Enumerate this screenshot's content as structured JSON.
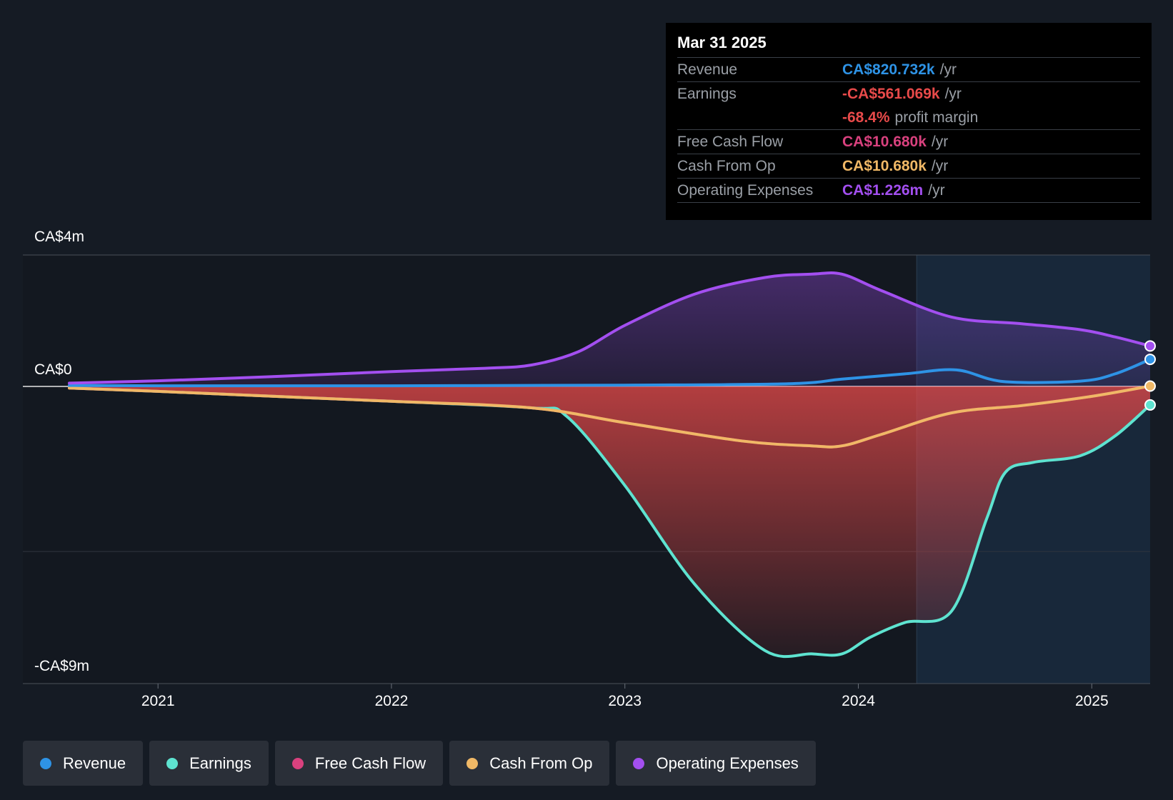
{
  "chart_data": {
    "type": "area",
    "y_labels": [
      "CA$4m",
      "CA$0",
      "-CA$9m"
    ],
    "ylim": [
      -9,
      4
    ],
    "y_unit": "CA$ millions",
    "x_ticks": [
      "2021",
      "2022",
      "2023",
      "2024",
      "2025"
    ],
    "xlim": [
      2020.62,
      2025.25
    ],
    "forecast_start": 2024.25,
    "series": [
      {
        "name": "Operating Expenses",
        "color": "#a34ff0",
        "fill": true,
        "x": [
          2020.62,
          2021.0,
          2021.5,
          2022.0,
          2022.4,
          2022.6,
          2022.8,
          2023.0,
          2023.3,
          2023.6,
          2023.8,
          2023.93,
          2024.1,
          2024.4,
          2024.7,
          2024.95,
          2025.1,
          2025.25
        ],
        "y": [
          0.1,
          0.17,
          0.3,
          0.45,
          0.55,
          0.65,
          1.05,
          1.85,
          2.8,
          3.3,
          3.4,
          3.4,
          2.9,
          2.1,
          1.9,
          1.72,
          1.5,
          1.226
        ]
      },
      {
        "name": "Revenue",
        "color": "#2e93e6",
        "fill": false,
        "x": [
          2020.62,
          2021.0,
          2022.0,
          2023.0,
          2023.7,
          2023.93,
          2024.2,
          2024.42,
          2024.62,
          2024.95,
          2025.1,
          2025.25
        ],
        "y": [
          0.03,
          0.02,
          0.02,
          0.04,
          0.08,
          0.22,
          0.38,
          0.5,
          0.15,
          0.16,
          0.38,
          0.820732
        ]
      },
      {
        "name": "Cash From Op",
        "color": "#f0b866",
        "fill": false,
        "x": [
          2020.62,
          2021.0,
          2021.5,
          2022.0,
          2022.6,
          2023.0,
          2023.5,
          2023.8,
          2023.93,
          2024.1,
          2024.4,
          2024.7,
          2025.0,
          2025.25
        ],
        "y": [
          -0.05,
          -0.15,
          -0.3,
          -0.45,
          -0.65,
          -1.1,
          -1.65,
          -1.8,
          -1.8,
          -1.45,
          -0.8,
          -0.58,
          -0.3,
          0.01068
        ]
      },
      {
        "name": "Free Cash Flow",
        "color": "#d9417e",
        "fill": false,
        "x": [
          2020.62,
          2021.0,
          2021.5,
          2022.0,
          2022.6,
          2023.0,
          2023.5,
          2023.8,
          2023.93,
          2024.1,
          2024.4,
          2024.7,
          2025.0,
          2025.25
        ],
        "y": [
          -0.05,
          -0.15,
          -0.3,
          -0.45,
          -0.65,
          -1.1,
          -1.65,
          -1.8,
          -1.8,
          -1.45,
          -0.8,
          -0.58,
          -0.3,
          0.01068
        ]
      },
      {
        "name": "Earnings",
        "color": "#5ee3d0",
        "fill": true,
        "x": [
          2020.62,
          2021.0,
          2021.5,
          2022.0,
          2022.6,
          2022.75,
          2023.0,
          2023.3,
          2023.6,
          2023.8,
          2023.93,
          2024.05,
          2024.2,
          2024.4,
          2024.55,
          2024.63,
          2024.75,
          2024.95,
          2025.1,
          2025.25
        ],
        "y": [
          -0.05,
          -0.15,
          -0.3,
          -0.45,
          -0.65,
          -0.9,
          -3.0,
          -6.0,
          -8.0,
          -8.1,
          -8.1,
          -7.6,
          -7.15,
          -6.8,
          -4.0,
          -2.6,
          -2.3,
          -2.1,
          -1.5,
          -0.561069
        ]
      }
    ]
  },
  "tooltip": {
    "date": "Mar 31 2025",
    "rows": [
      {
        "label": "Revenue",
        "value": "CA$820.732k",
        "unit": "/yr",
        "color": "#2e93e6"
      },
      {
        "label": "Earnings",
        "value": "-CA$561.069k",
        "unit": "/yr",
        "color": "#e84a4a"
      },
      {
        "label": "",
        "value": "-68.4%",
        "unit": "profit margin",
        "color": "#e84a4a"
      },
      {
        "label": "Free Cash Flow",
        "value": "CA$10.680k",
        "unit": "/yr",
        "color": "#d9417e"
      },
      {
        "label": "Cash From Op",
        "value": "CA$10.680k",
        "unit": "/yr",
        "color": "#f0b866"
      },
      {
        "label": "Operating Expenses",
        "value": "CA$1.226m",
        "unit": "/yr",
        "color": "#a34ff0"
      }
    ]
  },
  "legend": [
    {
      "label": "Revenue",
      "color": "#2e93e6"
    },
    {
      "label": "Earnings",
      "color": "#5ee3d0"
    },
    {
      "label": "Free Cash Flow",
      "color": "#d9417e"
    },
    {
      "label": "Cash From Op",
      "color": "#f0b866"
    },
    {
      "label": "Operating Expenses",
      "color": "#a34ff0"
    }
  ]
}
